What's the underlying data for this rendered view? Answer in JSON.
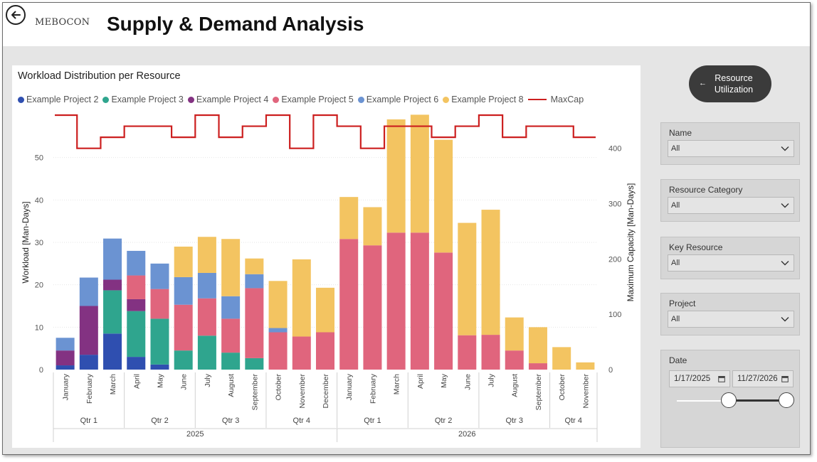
{
  "header": {
    "logo_text": "MEBOCON",
    "title": "Supply & Demand Analysis"
  },
  "chart_data": {
    "type": "bar",
    "stacked": true,
    "title": "Workload Distribution per Resource",
    "ylabel": "Workload [Man-Days]",
    "y2label": "Maximum Capacity [Man-Days]",
    "ylim": [
      0,
      60
    ],
    "y2lim": [
      0,
      460
    ],
    "yticks": [
      0,
      10,
      20,
      30,
      40,
      50
    ],
    "y2ticks": [
      0,
      100,
      200,
      300,
      400
    ],
    "grid": true,
    "legend_position": "top-left",
    "categories": [
      "January",
      "February",
      "March",
      "April",
      "May",
      "June",
      "July",
      "August",
      "September",
      "October",
      "November",
      "December",
      "January",
      "February",
      "March",
      "April",
      "May",
      "June",
      "July",
      "August",
      "September",
      "October",
      "November"
    ],
    "quarters": [
      {
        "label": "Qtr 1",
        "span": 3
      },
      {
        "label": "Qtr 2",
        "span": 3
      },
      {
        "label": "Qtr 3",
        "span": 3
      },
      {
        "label": "Qtr 4",
        "span": 3
      },
      {
        "label": "Qtr 1",
        "span": 3
      },
      {
        "label": "Qtr 2",
        "span": 3
      },
      {
        "label": "Qtr 3",
        "span": 3
      },
      {
        "label": "Qtr 4",
        "span": 2
      }
    ],
    "years": [
      {
        "label": "2025",
        "span": 12
      },
      {
        "label": "2026",
        "span": 11
      }
    ],
    "series": [
      {
        "name": "Example Project 2",
        "color": "#2f4fb0",
        "values": [
          1,
          3.5,
          8.5,
          3,
          1.2,
          0,
          0,
          0,
          0,
          0,
          0,
          0,
          0,
          0,
          0,
          0,
          0,
          0,
          0,
          0,
          0,
          0,
          0
        ]
      },
      {
        "name": "Example Project 3",
        "color": "#2fa58e",
        "values": [
          0,
          0,
          10.2,
          10.8,
          10.8,
          4.5,
          8,
          4,
          2.7,
          0,
          0,
          0,
          0,
          0,
          0,
          0,
          0,
          0,
          0,
          0,
          0,
          0,
          0
        ]
      },
      {
        "name": "Example Project 4",
        "color": "#833282",
        "values": [
          3.5,
          11.5,
          2.5,
          2.8,
          0,
          0,
          0,
          0,
          0,
          0,
          0,
          0,
          0,
          0,
          0,
          0,
          0,
          0,
          0,
          0,
          0,
          0,
          0
        ]
      },
      {
        "name": "Example Project 5",
        "color": "#e0657d",
        "values": [
          0,
          0,
          0,
          5.6,
          7,
          10.8,
          8.8,
          8,
          16.5,
          8.8,
          7.8,
          8.8,
          30.8,
          29.3,
          32.3,
          32.3,
          27.6,
          8.1,
          8.2,
          4.5,
          1.5,
          0,
          0
        ]
      },
      {
        "name": "Example Project 6",
        "color": "#6b93d2",
        "values": [
          3,
          6.7,
          9.7,
          5.8,
          6,
          6.5,
          6,
          5.3,
          3.3,
          1,
          0,
          0,
          0,
          0,
          0,
          0,
          0,
          0,
          0,
          0,
          0,
          0,
          0
        ]
      },
      {
        "name": "Example Project 8",
        "color": "#f3c461",
        "values": [
          0,
          0,
          0,
          0,
          0,
          7.2,
          8.5,
          13.5,
          3.7,
          11.1,
          18.2,
          10.5,
          9.9,
          9,
          26.7,
          27.8,
          26.6,
          26.5,
          29.5,
          7.8,
          8.5,
          5.3,
          1.7
        ]
      }
    ],
    "line_series": {
      "name": "MaxCap",
      "color": "#cc1f1f",
      "axis": "secondary",
      "values": [
        460,
        400,
        420,
        440,
        440,
        420,
        460,
        420,
        440,
        460,
        400,
        460,
        440,
        400,
        440,
        440,
        420,
        440,
        460,
        420,
        440,
        440,
        420
      ]
    }
  },
  "sidebar": {
    "util_button_label": "Resource Utilization",
    "slicers": [
      {
        "title": "Name",
        "value": "All"
      },
      {
        "title": "Resource Category",
        "value": "All"
      },
      {
        "title": "Key Resource",
        "value": "All"
      },
      {
        "title": "Project",
        "value": "All"
      }
    ],
    "date": {
      "title": "Date",
      "start": "1/17/2025",
      "end": "11/27/2026"
    }
  }
}
